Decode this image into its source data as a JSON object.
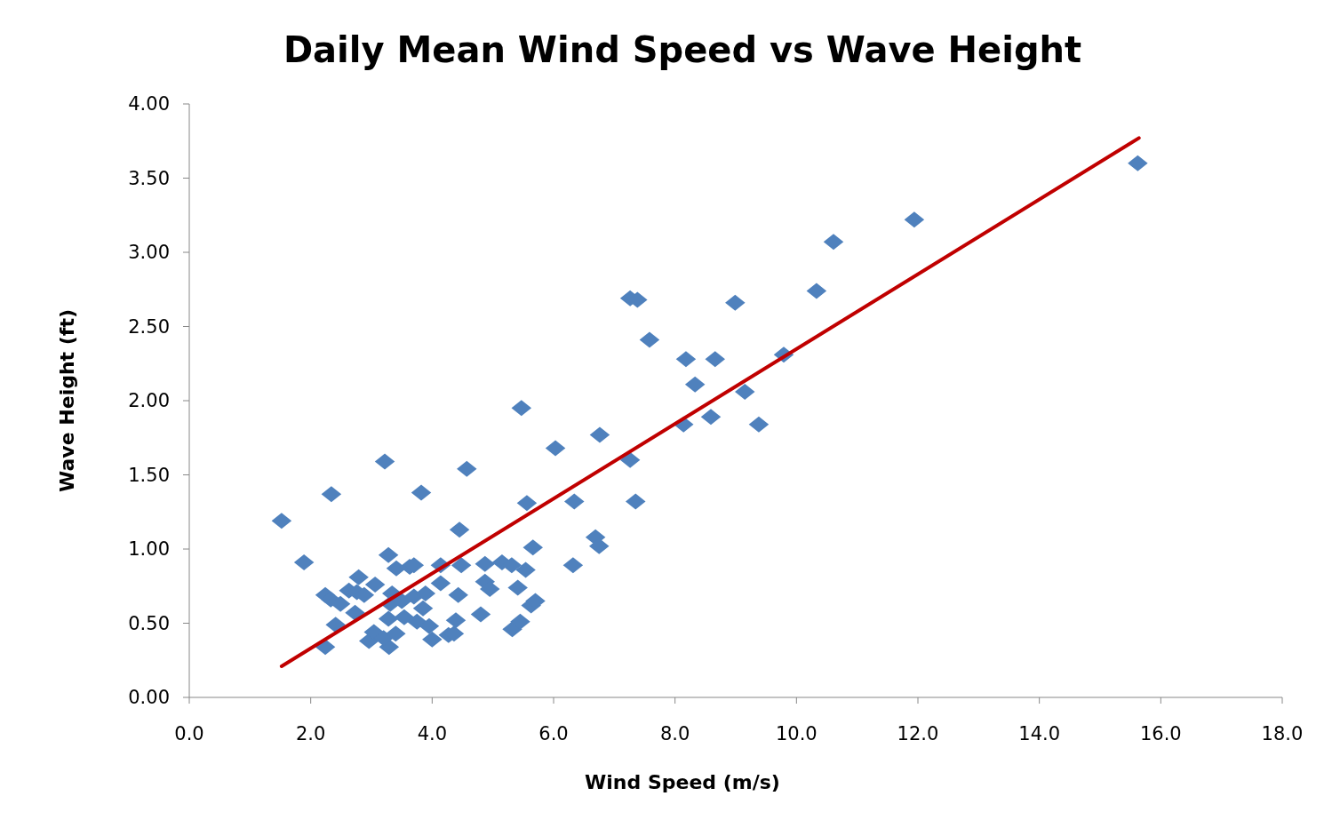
{
  "chart_data": {
    "type": "scatter",
    "title": "Daily Mean Wind Speed vs Wave Height",
    "xlabel": "Wind Speed (m/s)",
    "ylabel": "Wave Height (ft)",
    "xlim": [
      0,
      18
    ],
    "xticks": [
      {
        "value": 0,
        "label": "0.0"
      },
      {
        "value": 2,
        "label": "2.0"
      },
      {
        "value": 4,
        "label": "4.0"
      },
      {
        "value": 6,
        "label": "6.0"
      },
      {
        "value": 8,
        "label": "8.0"
      },
      {
        "value": 10,
        "label": "10.0"
      },
      {
        "value": 12,
        "label": "12.0"
      },
      {
        "value": 14,
        "label": "14.0"
      },
      {
        "value": 16,
        "label": "16.0"
      },
      {
        "value": 18,
        "label": "18.0"
      }
    ],
    "ylim": [
      0,
      4
    ],
    "yticks": [
      {
        "value": 0,
        "label": "0.00"
      },
      {
        "value": 0.5,
        "label": "0.50"
      },
      {
        "value": 1,
        "label": "1.00"
      },
      {
        "value": 1.5,
        "label": "1.50"
      },
      {
        "value": 2,
        "label": "2.00"
      },
      {
        "value": 2.5,
        "label": "2.50"
      },
      {
        "value": 3,
        "label": "3.00"
      },
      {
        "value": 3.5,
        "label": "3.50"
      },
      {
        "value": 4,
        "label": "4.00"
      }
    ],
    "grid": false,
    "series": [
      {
        "color": "#4f81bd",
        "marker": "diamond",
        "x": [
          1.52,
          1.89,
          2.34,
          2.24,
          2.24,
          2.33,
          2.49,
          2.41,
          2.63,
          2.73,
          2.79,
          2.76,
          2.88,
          3.06,
          2.96,
          3.04,
          3.22,
          3.28,
          3.31,
          3.34,
          3.28,
          3.29,
          3.2,
          3.4,
          3.41,
          3.5,
          3.54,
          3.63,
          3.7,
          3.7,
          3.75,
          3.82,
          3.85,
          3.89,
          3.95,
          4.0,
          4.14,
          4.14,
          4.27,
          4.36,
          4.39,
          4.43,
          4.45,
          4.48,
          4.57,
          4.8,
          4.87,
          4.87,
          4.95,
          5.15,
          5.31,
          5.32,
          5.45,
          5.41,
          5.47,
          5.54,
          5.56,
          5.63,
          5.66,
          5.7,
          6.03,
          6.32,
          6.34,
          6.69,
          6.75,
          6.76,
          7.26,
          7.38,
          7.26,
          7.35,
          7.58,
          8.14,
          8.18,
          8.33,
          8.59,
          8.66,
          8.99,
          9.15,
          9.38,
          9.79,
          10.33,
          10.61,
          11.94,
          15.62
        ],
        "values": [
          1.19,
          0.91,
          1.37,
          0.34,
          0.69,
          0.66,
          0.63,
          0.49,
          0.72,
          0.57,
          0.81,
          0.71,
          0.69,
          0.76,
          0.38,
          0.44,
          1.59,
          0.96,
          0.63,
          0.7,
          0.53,
          0.34,
          0.4,
          0.43,
          0.87,
          0.65,
          0.54,
          0.88,
          0.89,
          0.68,
          0.51,
          1.38,
          0.6,
          0.7,
          0.48,
          0.39,
          0.89,
          0.77,
          0.42,
          0.43,
          0.52,
          0.69,
          1.13,
          0.89,
          1.54,
          0.56,
          0.9,
          0.78,
          0.73,
          0.91,
          0.89,
          0.46,
          0.51,
          0.74,
          1.95,
          0.86,
          1.31,
          0.62,
          1.01,
          0.65,
          1.68,
          0.89,
          1.32,
          1.08,
          1.02,
          1.77,
          2.69,
          2.68,
          1.6,
          1.32,
          2.41,
          1.84,
          2.28,
          2.11,
          1.89,
          2.28,
          2.66,
          2.06,
          1.84,
          2.31,
          2.74,
          3.07,
          3.22,
          3.6
        ]
      },
      {
        "type": "line",
        "color": "#c00000",
        "x": [
          1.52,
          15.64
        ],
        "values": [
          0.21,
          3.77
        ]
      }
    ]
  }
}
